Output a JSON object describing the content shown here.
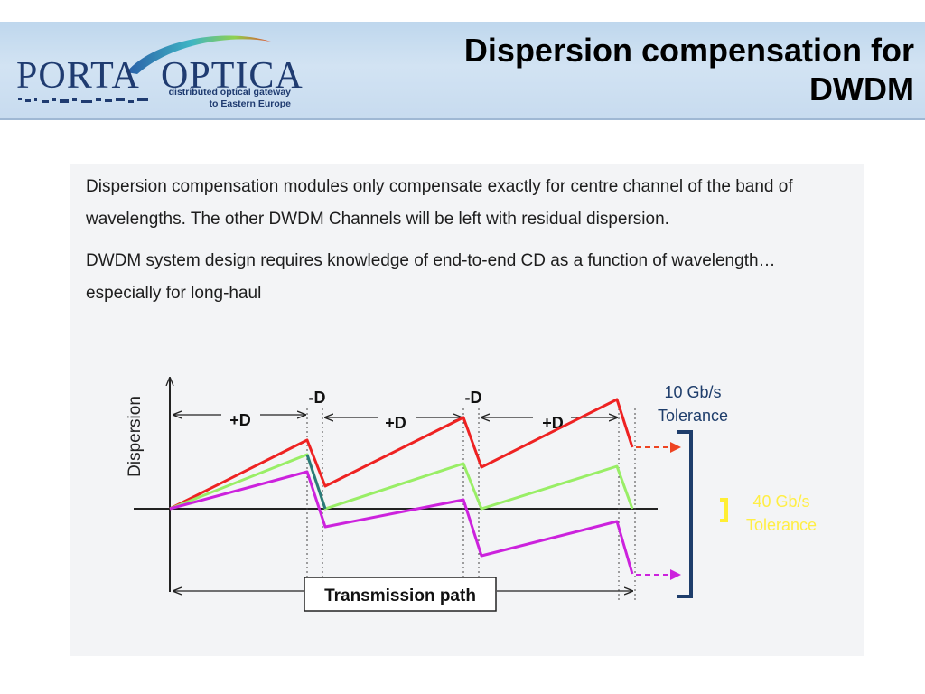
{
  "header": {
    "logo": {
      "word_left": "PORTA",
      "word_right": "OPTICA",
      "tagline_line1": "distributed optical gateway",
      "tagline_line2": "to Eastern Europe"
    },
    "title_line1": "Dispersion compensation for",
    "title_line2": "DWDM"
  },
  "body": {
    "paragraph1": "Dispersion compensation modules only compensate exactly for centre channel of the band of wavelengths.  The other DWDM Channels will be left with residual dispersion.",
    "paragraph2": "DWDM system design requires knowledge of end-to-end CD as a function of wavelength… especially for long-haul"
  },
  "diagram": {
    "y_axis_label": "Dispersion",
    "plus_d_label": "+D",
    "minus_d_label": "-D",
    "tolerance_10g_line1": "10 Gb/s",
    "tolerance_10g_line2": "Tolerance",
    "tolerance_40g_line1": "40 Gb/s",
    "tolerance_40g_line2": "Tolerance",
    "transmission_path_label": "Transmission path",
    "colors": {
      "red_channel": "#ee2222",
      "green_channel": "#99ee66",
      "magenta_channel": "#cc22dd",
      "centre_channel": "#2a7a7a",
      "bracket_10g": "#1e3d6b",
      "bracket_40g": "#ffee33"
    }
  }
}
